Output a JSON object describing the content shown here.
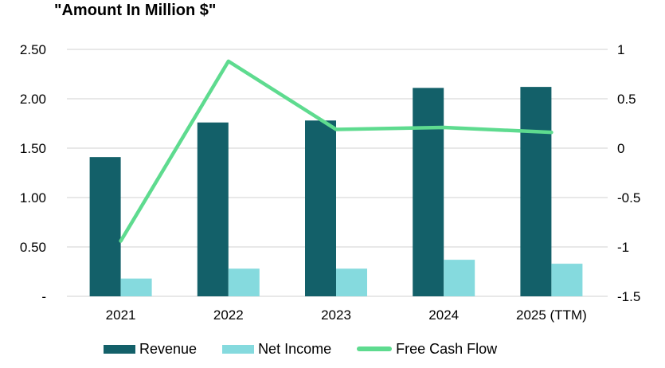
{
  "chart_data": {
    "type": "combo-bar-line",
    "title": "\"Amount In Million $\"",
    "categories": [
      "2021",
      "2022",
      "2023",
      "2024",
      "2025 (TTM)"
    ],
    "series": [
      {
        "name": "Revenue",
        "type": "bar",
        "axis": "left",
        "color": "#136069",
        "values": [
          1.41,
          1.76,
          1.78,
          2.11,
          2.12
        ]
      },
      {
        "name": "Net Income",
        "type": "bar",
        "axis": "left",
        "color": "#85dade",
        "values": [
          0.18,
          0.28,
          0.28,
          0.37,
          0.33
        ]
      },
      {
        "name": "Free Cash Flow",
        "type": "line",
        "axis": "right",
        "color": "#5edb8f",
        "values": [
          -0.94,
          0.88,
          0.19,
          0.21,
          0.16
        ]
      }
    ],
    "left_axis": {
      "ticks": [
        "2.50",
        "2.00",
        "1.50",
        "1.00",
        "0.50",
        "-"
      ],
      "values": [
        2.5,
        2.0,
        1.5,
        1.0,
        0.5,
        0
      ],
      "min": 0,
      "max": 2.5
    },
    "right_axis": {
      "ticks": [
        "1",
        "0.5",
        "0",
        "-0.5",
        "-1",
        "-1.5"
      ],
      "values": [
        1,
        0.5,
        0,
        -0.5,
        -1,
        -1.5
      ],
      "min": -1.5,
      "max": 1
    },
    "grid": true,
    "gridline_color": "#d9d9d9",
    "legend_position": "bottom",
    "xlabel": "",
    "ylabel_left": "",
    "ylabel_right": ""
  }
}
